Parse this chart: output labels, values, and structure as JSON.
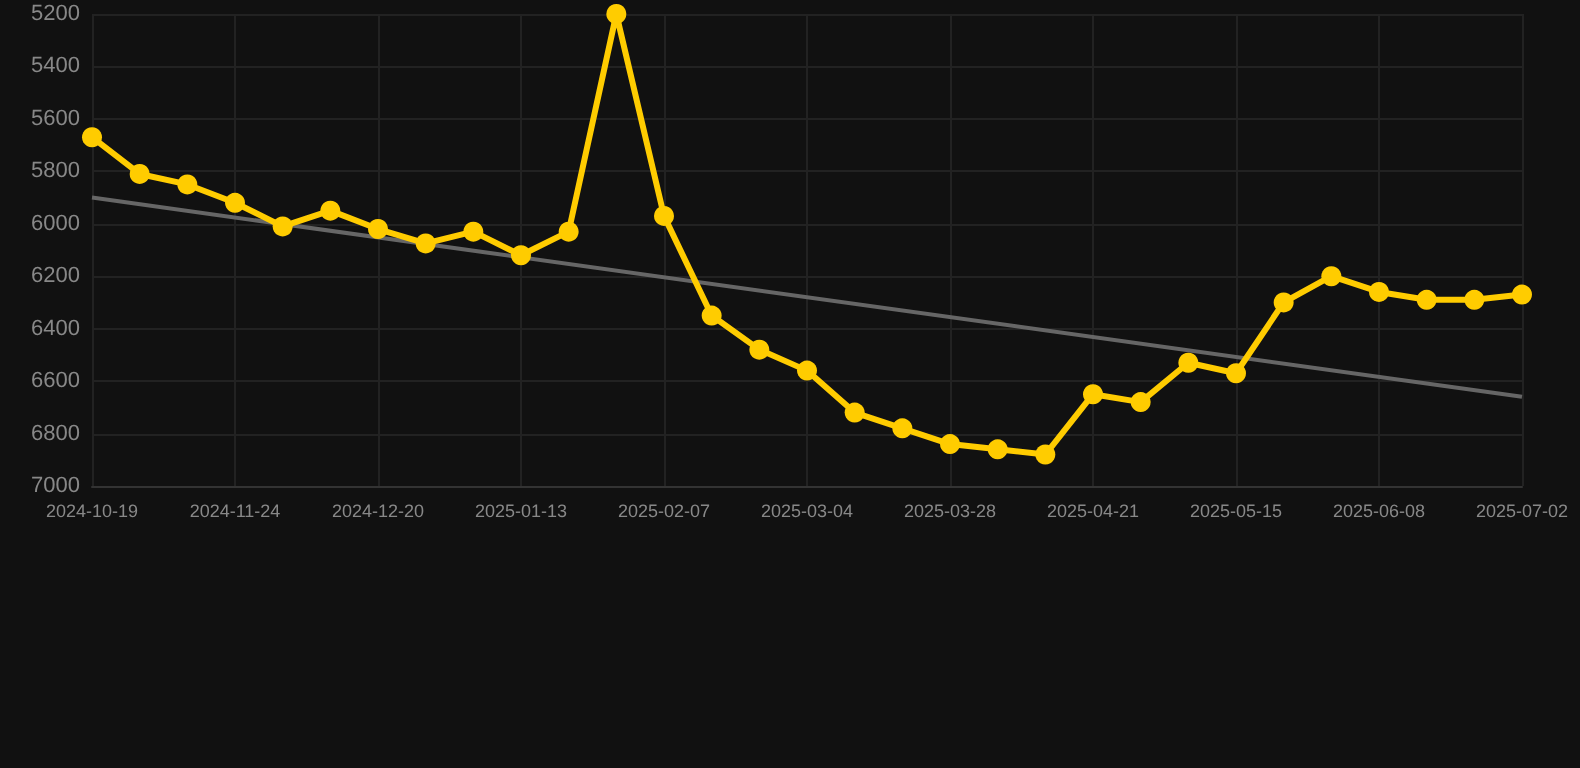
{
  "chart_data": {
    "type": "line",
    "categories": [
      "2024-10-19",
      null,
      null,
      "2024-11-24",
      null,
      null,
      "2024-12-20",
      null,
      null,
      "2025-01-13",
      null,
      null,
      "2025-02-07",
      null,
      null,
      "2025-03-04",
      null,
      null,
      "2025-03-28",
      null,
      null,
      "2025-04-21",
      null,
      null,
      "2025-05-15",
      null,
      null,
      "2025-06-08",
      null,
      null,
      "2025-07-02"
    ],
    "series": [
      {
        "color": "#ffcc00",
        "marker": "circle",
        "values": [
          5670,
          5810,
          5850,
          5920,
          6010,
          5950,
          6020,
          6075,
          6030,
          6120,
          6030,
          5200,
          5970,
          6350,
          6480,
          6560,
          6720,
          6780,
          6840,
          6860,
          6880,
          6650,
          6680,
          6530,
          6570,
          6300,
          6200,
          6260,
          6290,
          6290,
          6270
        ]
      },
      {
        "color": "#666666",
        "marker": "none",
        "values": [
          5900,
          null,
          null,
          null,
          null,
          null,
          null,
          null,
          null,
          null,
          null,
          null,
          null,
          null,
          null,
          null,
          null,
          null,
          null,
          null,
          null,
          null,
          null,
          null,
          null,
          null,
          null,
          null,
          null,
          null,
          6660
        ]
      }
    ],
    "ylim": [
      7000,
      5200
    ],
    "yticks": [
      5200,
      5400,
      5600,
      5800,
      6000,
      6200,
      6400,
      6600,
      6800,
      7000
    ],
    "grid": true
  }
}
